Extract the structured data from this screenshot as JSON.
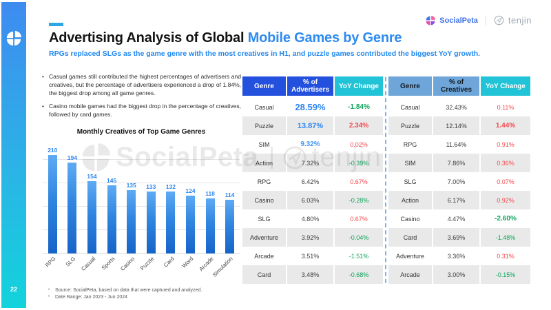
{
  "sidebar": {
    "page_number": "22"
  },
  "brand": {
    "socialpeta": "SocialPeta",
    "tenjin": "tenjin"
  },
  "header": {
    "title_prefix": "Advertising Analysis of Global ",
    "title_highlight": "Mobile Games by Genre",
    "subtitle": "RPGs replaced SLGs as the game genre with the most creatives in H1, and puzzle games contributed the biggest YoY growth."
  },
  "bullets": [
    "Casual games still contributed the highest percentages of advertisers and creatives, but the percentage of advertisers experienced a drop of 1.84%, the biggest drop among all game genres.",
    "Casino mobile games had the biggest drop in the percentage of creatives, followed by card games."
  ],
  "chart_data": {
    "type": "bar",
    "title": "Monthly Creatives of Top Game Genres",
    "categories": [
      "RPG",
      "SLG",
      "Casual",
      "Sports",
      "Casino",
      "Puzzle",
      "Card",
      "Word",
      "Arcade",
      "Simulation"
    ],
    "values": [
      210,
      194,
      154,
      145,
      135,
      133,
      132,
      124,
      118,
      114
    ],
    "xlabel": "",
    "ylabel": "",
    "ylim": [
      0,
      250
    ],
    "gridlines": [
      0,
      50,
      100,
      150,
      200
    ],
    "grid": true,
    "legend": "none",
    "bar_color_top": "#5FAAF4",
    "bar_color_bottom": "#1663C8",
    "value_label_color": "#2E86F0"
  },
  "tables": {
    "advertisers": {
      "header_theme": "royal",
      "headers": [
        "Genre",
        "% of Advertisers",
        "YoY Change"
      ],
      "rows": [
        {
          "genre": "Casual",
          "value": "28.59%",
          "yoy": "-1.84%",
          "value_em": 3,
          "yoy_em": true
        },
        {
          "genre": "Puzzle",
          "value": "13.87%",
          "yoy": "2.34%",
          "value_em": 2,
          "yoy_em": true
        },
        {
          "genre": "SIM",
          "value": "9.32%",
          "yoy": "0.02%",
          "value_em": 1,
          "yoy_em": false
        },
        {
          "genre": "Action",
          "value": "7.32%",
          "yoy": "-0.39%",
          "value_em": 0,
          "yoy_em": false
        },
        {
          "genre": "RPG",
          "value": "6.42%",
          "yoy": "0.67%",
          "value_em": 0,
          "yoy_em": false
        },
        {
          "genre": "Casino",
          "value": "6.03%",
          "yoy": "-0.28%",
          "value_em": 0,
          "yoy_em": false
        },
        {
          "genre": "SLG",
          "value": "4.80%",
          "yoy": "0.67%",
          "value_em": 0,
          "yoy_em": false
        },
        {
          "genre": "Adventure",
          "value": "3.92%",
          "yoy": "-0.04%",
          "value_em": 0,
          "yoy_em": false
        },
        {
          "genre": "Arcade",
          "value": "3.51%",
          "yoy": "-1.51%",
          "value_em": 0,
          "yoy_em": false
        },
        {
          "genre": "Card",
          "value": "3.48%",
          "yoy": "-0.68%",
          "value_em": 0,
          "yoy_em": false
        }
      ]
    },
    "creatives": {
      "header_theme": "steel",
      "headers": [
        "Genre",
        "% of Creatives",
        "YoY Change"
      ],
      "rows": [
        {
          "genre": "Casual",
          "value": "32.43%",
          "yoy": "0.11%",
          "value_em": 0,
          "yoy_em": false
        },
        {
          "genre": "Puzzle",
          "value": "12.14%",
          "yoy": "1.44%",
          "value_em": 0,
          "yoy_em": true
        },
        {
          "genre": "RPG",
          "value": "11.64%",
          "yoy": "0.91%",
          "value_em": 0,
          "yoy_em": false
        },
        {
          "genre": "SIM",
          "value": "7.86%",
          "yoy": "0.36%",
          "value_em": 0,
          "yoy_em": false
        },
        {
          "genre": "SLG",
          "value": "7.00%",
          "yoy": "0.07%",
          "value_em": 0,
          "yoy_em": false
        },
        {
          "genre": "Action",
          "value": "6.17%",
          "yoy": "0.92%",
          "value_em": 0,
          "yoy_em": false
        },
        {
          "genre": "Casino",
          "value": "4.47%",
          "yoy": "-2.60%",
          "value_em": 0,
          "yoy_em": true
        },
        {
          "genre": "Card",
          "value": "3.69%",
          "yoy": "-1.48%",
          "value_em": 0,
          "yoy_em": false
        },
        {
          "genre": "Adventure",
          "value": "3.36%",
          "yoy": "0.31%",
          "value_em": 0,
          "yoy_em": false
        },
        {
          "genre": "Arcade",
          "value": "3.00%",
          "yoy": "-0.15%",
          "value_em": 0,
          "yoy_em": false
        }
      ]
    }
  },
  "watermark": {
    "socialpeta": "SocialPeta",
    "tenjin": "tenjin"
  },
  "footer": {
    "notes": [
      "Source: SocialPeta, based on data that were captured and analyzed.",
      "Date Range: Jan 2023 - Jun 2024"
    ]
  },
  "colors": {
    "accent_bar": "#2DA7E3",
    "title_highlight": "#2E8BF0",
    "subtitle_blue": "#1E87F0",
    "header_royal_blue": "#2450DE",
    "header_cyan": "#21C3D6",
    "header_steel_blue": "#6FA6D9",
    "positive_red": "#F4484D",
    "negative_green": "#0EA55B",
    "number_blue": "#2E86F0",
    "sidebar_gradient_top": "#3E8BF0",
    "sidebar_gradient_bottom": "#12D3DC"
  }
}
